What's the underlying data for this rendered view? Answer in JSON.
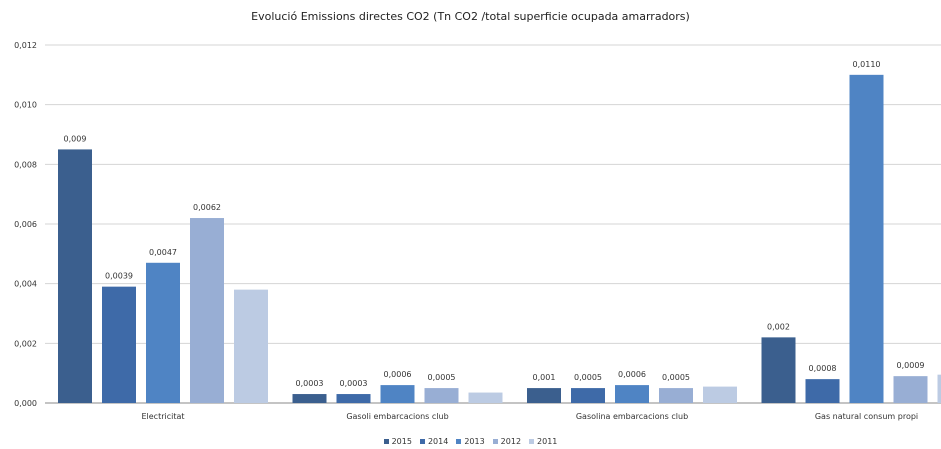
{
  "chart_data": {
    "type": "bar",
    "title": "Evolució Emissions directes CO2 (Tn CO2 /total superficie ocupada amarradors)",
    "xlabel": "",
    "ylabel": "",
    "ylim": [
      0,
      0.012
    ],
    "yticks": [
      "0,000",
      "0,002",
      "0,004",
      "0,006",
      "0,008",
      "0,010",
      "0,012"
    ],
    "grid": true,
    "legend_position": "bottom",
    "categories": [
      "Electricitat",
      "Gasoli embarcacions club",
      "Gasolina embarcacions club",
      "Gas natural consum propi"
    ],
    "series": [
      {
        "name": "2015",
        "color": "#3b5f8e",
        "values": [
          0.0085,
          0.0003,
          0.0005,
          0.0022
        ],
        "labels": [
          "0,009",
          "0,0003",
          "0,001",
          "0,002"
        ]
      },
      {
        "name": "2014",
        "color": "#3e6aa8",
        "values": [
          0.0039,
          0.0003,
          0.0005,
          0.0008
        ],
        "labels": [
          "0,0039",
          "0,0003",
          "0,0005",
          "0,0008"
        ]
      },
      {
        "name": "2013",
        "color": "#4f84c4",
        "values": [
          0.0047,
          0.0006,
          0.0006,
          0.011
        ],
        "labels": [
          "0,0047",
          "0,0006",
          "0,0006",
          "0,0110"
        ]
      },
      {
        "name": "2012",
        "color": "#98aed4",
        "values": [
          0.0062,
          0.0005,
          0.0005,
          0.0009
        ],
        "labels": [
          "0,0062",
          "0,0005",
          "0,0005",
          "0,0009"
        ]
      },
      {
        "name": "2011",
        "color": "#bccbe3",
        "values": [
          0.0038,
          0.00035,
          0.00055,
          0.00095
        ],
        "labels": [
          "",
          "",
          "",
          ""
        ]
      }
    ]
  }
}
